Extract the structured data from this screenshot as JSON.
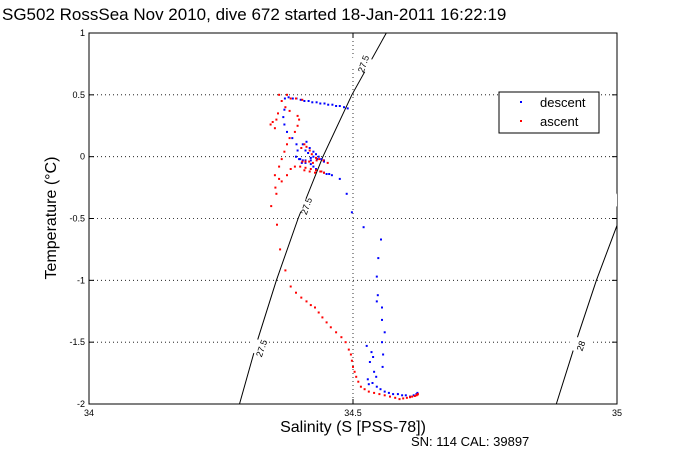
{
  "chart_data": {
    "type": "scatter",
    "title": "SG502 RossSea Nov 2010, dive 672 started 18-Jan-2011 16:22:19",
    "xlabel": "Salinity (S [PSS-78])",
    "ylabel": "Temperature (°C)",
    "xlim": [
      34,
      35
    ],
    "ylim": [
      -2,
      1
    ],
    "xticks": [
      34,
      34.5,
      35
    ],
    "xtick_labels": [
      "34",
      "34.5",
      "35"
    ],
    "yticks": [
      -2,
      -1.5,
      -1,
      -0.5,
      0,
      0.5,
      1
    ],
    "ytick_labels": [
      "-2",
      "-1.5",
      "-1",
      "-0.5",
      "0",
      "0.5",
      "1"
    ],
    "grid": true,
    "legend_position": "top-right",
    "footer": "SN: 114  CAL: 39897",
    "contours": [
      {
        "label": "27.5",
        "points": [
          [
            34.563,
            1.0
          ],
          [
            34.498,
            0.5
          ],
          [
            34.443,
            0.0
          ],
          [
            34.396,
            -0.5
          ],
          [
            34.355,
            -1.0
          ],
          [
            34.318,
            -1.5
          ],
          [
            34.285,
            -2.0
          ]
        ],
        "label_positions": [
          [
            34.52,
            0.75
          ],
          [
            34.412,
            -0.4
          ],
          [
            34.327,
            -1.55
          ]
        ]
      },
      {
        "label": "28",
        "points": [
          [
            35.187,
            1.0
          ],
          [
            35.115,
            0.5
          ],
          [
            35.055,
            0.0
          ],
          [
            35.005,
            -0.5
          ],
          [
            34.961,
            -1.0
          ],
          [
            34.922,
            -1.5
          ],
          [
            34.885,
            -2.0
          ]
        ],
        "label_positions": [
          [
            35.145,
            0.75
          ],
          [
            35.018,
            -0.37
          ],
          [
            34.932,
            -1.53
          ]
        ]
      }
    ],
    "series": [
      {
        "name": "descent",
        "color": "#0000ff",
        "points": [
          [
            34.371,
            0.47
          ],
          [
            34.378,
            0.48
          ],
          [
            34.386,
            0.47
          ],
          [
            34.393,
            0.47
          ],
          [
            34.401,
            0.46
          ],
          [
            34.408,
            0.45
          ],
          [
            34.416,
            0.45
          ],
          [
            34.423,
            0.44
          ],
          [
            34.431,
            0.44
          ],
          [
            34.438,
            0.43
          ],
          [
            34.446,
            0.43
          ],
          [
            34.453,
            0.42
          ],
          [
            34.461,
            0.42
          ],
          [
            34.468,
            0.41
          ],
          [
            34.475,
            0.41
          ],
          [
            34.483,
            0.4
          ],
          [
            34.49,
            0.39
          ],
          [
            34.37,
            0.38
          ],
          [
            34.368,
            0.32
          ],
          [
            34.37,
            0.26
          ],
          [
            34.375,
            0.2
          ],
          [
            34.385,
            0.15
          ],
          [
            34.393,
            0.1
          ],
          [
            34.395,
            0.05
          ],
          [
            34.392,
            0.0
          ],
          [
            34.4,
            -0.02
          ],
          [
            34.41,
            -0.05
          ],
          [
            34.42,
            -0.06
          ],
          [
            34.425,
            -0.08
          ],
          [
            34.43,
            -0.1
          ],
          [
            34.44,
            -0.12
          ],
          [
            34.445,
            -0.13
          ],
          [
            34.45,
            -0.14
          ],
          [
            34.455,
            -0.14
          ],
          [
            34.46,
            -0.15
          ],
          [
            34.415,
            0.03
          ],
          [
            34.41,
            0.05
          ],
          [
            34.405,
            0.1
          ],
          [
            34.412,
            0.12
          ],
          [
            34.418,
            0.07
          ],
          [
            34.425,
            0.04
          ],
          [
            34.43,
            0.02
          ],
          [
            34.435,
            0.0
          ],
          [
            34.44,
            -0.02
          ],
          [
            34.445,
            -0.04
          ],
          [
            34.42,
            -0.01
          ],
          [
            34.425,
            0.0
          ],
          [
            34.405,
            -0.03
          ],
          [
            34.398,
            -0.02
          ],
          [
            34.403,
            -0.05
          ],
          [
            34.41,
            -0.03
          ],
          [
            34.42,
            -0.03
          ],
          [
            34.432,
            -0.02
          ],
          [
            34.445,
            -0.03
          ],
          [
            34.475,
            -0.18
          ],
          [
            34.488,
            -0.3
          ],
          [
            34.498,
            -0.45
          ],
          [
            34.52,
            -0.57
          ],
          [
            34.553,
            -0.67
          ],
          [
            34.548,
            -0.82
          ],
          [
            34.545,
            -0.97
          ],
          [
            34.547,
            -1.12
          ],
          [
            34.545,
            -1.17
          ],
          [
            34.555,
            -1.22
          ],
          [
            34.555,
            -1.32
          ],
          [
            34.56,
            -1.42
          ],
          [
            34.555,
            -1.5
          ],
          [
            34.557,
            -1.6
          ],
          [
            34.556,
            -1.7
          ],
          [
            34.544,
            -1.78
          ],
          [
            34.538,
            -1.62
          ],
          [
            34.535,
            -1.58
          ],
          [
            34.532,
            -1.66
          ],
          [
            34.54,
            -1.74
          ],
          [
            34.526,
            -1.53
          ],
          [
            34.528,
            -1.8
          ],
          [
            34.53,
            -1.84
          ],
          [
            34.537,
            -1.83
          ],
          [
            34.545,
            -1.86
          ],
          [
            34.552,
            -1.88
          ],
          [
            34.56,
            -1.9
          ],
          [
            34.568,
            -1.91
          ],
          [
            34.576,
            -1.92
          ],
          [
            34.585,
            -1.92
          ],
          [
            34.593,
            -1.93
          ],
          [
            34.6,
            -1.93
          ],
          [
            34.608,
            -1.94
          ],
          [
            34.615,
            -1.93
          ],
          [
            34.62,
            -1.92
          ],
          [
            34.622,
            -1.91
          ]
        ]
      },
      {
        "name": "ascent",
        "color": "#ff0000",
        "points": [
          [
            34.345,
            -0.4
          ],
          [
            34.355,
            -0.3
          ],
          [
            34.365,
            -0.2
          ],
          [
            34.375,
            -0.15
          ],
          [
            34.382,
            -0.1
          ],
          [
            34.39,
            -0.08
          ],
          [
            34.4,
            -0.08
          ],
          [
            34.41,
            -0.09
          ],
          [
            34.42,
            -0.1
          ],
          [
            34.43,
            -0.11
          ],
          [
            34.44,
            -0.12
          ],
          [
            34.445,
            -0.13
          ],
          [
            34.438,
            -0.12
          ],
          [
            34.428,
            -0.13
          ],
          [
            34.418,
            -0.12
          ],
          [
            34.408,
            -0.11
          ],
          [
            34.352,
            -0.15
          ],
          [
            34.36,
            -0.18
          ],
          [
            34.36,
            -0.08
          ],
          [
            34.365,
            -0.02
          ],
          [
            34.37,
            0.04
          ],
          [
            34.375,
            0.1
          ],
          [
            34.38,
            0.15
          ],
          [
            34.39,
            0.2
          ],
          [
            34.395,
            0.25
          ],
          [
            34.398,
            0.3
          ],
          [
            34.395,
            0.33
          ],
          [
            34.38,
            0.37
          ],
          [
            34.372,
            0.4
          ],
          [
            34.365,
            0.45
          ],
          [
            34.36,
            0.5
          ],
          [
            34.375,
            0.5
          ],
          [
            34.382,
            0.47
          ],
          [
            34.392,
            0.47
          ],
          [
            34.404,
            0.46
          ],
          [
            34.402,
            0.07
          ],
          [
            34.408,
            0.1
          ],
          [
            34.412,
            0.08
          ],
          [
            34.418,
            0.05
          ],
          [
            34.422,
            0.02
          ],
          [
            34.43,
            -0.01
          ],
          [
            34.436,
            -0.02
          ],
          [
            34.444,
            -0.03
          ],
          [
            34.452,
            -0.05
          ],
          [
            34.404,
            -0.04
          ],
          [
            34.41,
            -0.04
          ],
          [
            34.417,
            -0.04
          ],
          [
            34.424,
            -0.05
          ],
          [
            34.431,
            -0.03
          ],
          [
            34.355,
            0.3
          ],
          [
            34.358,
            0.35
          ],
          [
            34.352,
            0.23
          ],
          [
            34.348,
            0.28
          ],
          [
            34.344,
            0.26
          ],
          [
            34.353,
            -0.25
          ],
          [
            34.356,
            -0.55
          ],
          [
            34.362,
            -0.75
          ],
          [
            34.372,
            -0.92
          ],
          [
            34.382,
            -1.05
          ],
          [
            34.392,
            -1.1
          ],
          [
            34.402,
            -1.14
          ],
          [
            34.412,
            -1.17
          ],
          [
            34.42,
            -1.2
          ],
          [
            34.428,
            -1.22
          ],
          [
            34.435,
            -1.26
          ],
          [
            34.442,
            -1.3
          ],
          [
            34.45,
            -1.34
          ],
          [
            34.458,
            -1.38
          ],
          [
            34.468,
            -1.42
          ],
          [
            34.478,
            -1.46
          ],
          [
            34.486,
            -1.5
          ],
          [
            34.492,
            -1.56
          ],
          [
            34.496,
            -1.6
          ],
          [
            34.498,
            -1.65
          ],
          [
            34.5,
            -1.7
          ],
          [
            34.503,
            -1.74
          ],
          [
            34.506,
            -1.78
          ],
          [
            34.51,
            -1.82
          ],
          [
            34.515,
            -1.86
          ],
          [
            34.522,
            -1.88
          ],
          [
            34.53,
            -1.9
          ],
          [
            34.54,
            -1.91
          ],
          [
            34.55,
            -1.92
          ],
          [
            34.56,
            -1.93
          ],
          [
            34.57,
            -1.94
          ],
          [
            34.58,
            -1.95
          ],
          [
            34.588,
            -1.96
          ],
          [
            34.595,
            -1.955
          ],
          [
            34.602,
            -1.95
          ],
          [
            34.608,
            -1.945
          ],
          [
            34.612,
            -1.94
          ],
          [
            34.617,
            -1.935
          ],
          [
            34.62,
            -1.93
          ],
          [
            34.622,
            -1.925
          ],
          [
            34.623,
            -1.92
          ]
        ]
      }
    ]
  }
}
